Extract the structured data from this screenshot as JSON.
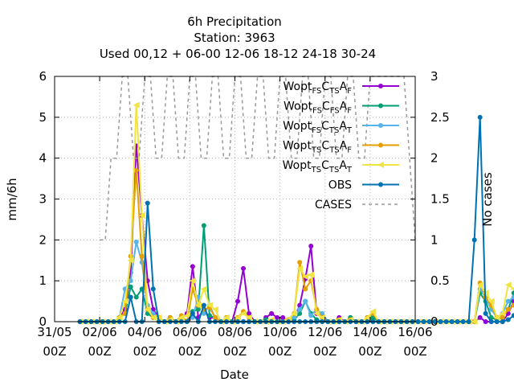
{
  "chart_data": {
    "type": "line",
    "title_lines": [
      "6h Precipitation",
      "Station:      3963",
      "Used  00,12  + 06-00 12-06 18-12 24-18 30-24"
    ],
    "xlabel": "Date",
    "ylabel": "mm/6h",
    "y2label": "No cases",
    "ylim": [
      0,
      6
    ],
    "y2lim": [
      0,
      3
    ],
    "xlim": [
      "31/05 00Z",
      "16/06 00Z"
    ],
    "grid": true,
    "legend_position": "top-right",
    "x_ticks": [
      {
        "day": 0,
        "line1": "31/05",
        "line2": "00Z"
      },
      {
        "day": 2,
        "line1": "02/06",
        "line2": "00Z"
      },
      {
        "day": 4,
        "line1": "04/06",
        "line2": "00Z"
      },
      {
        "day": 6,
        "line1": "06/06",
        "line2": "00Z"
      },
      {
        "day": 8,
        "line1": "08/06",
        "line2": "00Z"
      },
      {
        "day": 10,
        "line1": "10/06",
        "line2": "00Z"
      },
      {
        "day": 12,
        "line1": "12/06",
        "line2": "00Z"
      },
      {
        "day": 14,
        "line1": "14/06",
        "line2": "00Z"
      },
      {
        "day": 16,
        "line1": "16/06",
        "line2": "00Z"
      }
    ],
    "y_ticks": [
      "0",
      "1",
      "2",
      "3",
      "4",
      "5",
      "6"
    ],
    "y2_ticks": [
      "0",
      "0.5",
      "1",
      "1.5",
      "2",
      "2.5",
      "3"
    ],
    "x_step_days": 0.25,
    "x_start_day": 1.125,
    "series": [
      {
        "name": "Wopt FS C TS A F",
        "legend_parts": [
          [
            "Wopt",
            ""
          ],
          [
            "FS",
            "sub"
          ],
          [
            "C",
            ""
          ],
          [
            "TS",
            "sub"
          ],
          [
            "A",
            ""
          ],
          [
            "F",
            "sub"
          ]
        ],
        "color": "#9400d3",
        "marker": "circle",
        "dashed": false,
        "values": [
          0,
          0,
          0,
          0,
          0,
          0,
          0,
          0.1,
          0.3,
          1.2,
          4.3,
          2.6,
          1.0,
          0.3,
          0.1,
          0,
          0.1,
          0,
          0.1,
          0.2,
          1.35,
          0.1,
          0.3,
          0.1,
          0.1,
          0,
          0,
          0,
          0.5,
          1.3,
          0.2,
          0,
          0,
          0.1,
          0.2,
          0.1,
          0.1,
          0,
          0.1,
          0.4,
          1.05,
          1.85,
          0.2,
          0.1,
          0,
          0,
          0.1,
          0,
          0.1,
          0,
          0,
          0.1,
          0.2,
          0,
          0,
          0,
          0,
          0,
          0,
          0,
          0,
          0,
          0,
          0,
          0,
          0,
          0,
          0,
          0,
          0,
          0,
          0.1,
          0,
          0,
          0,
          0,
          0.2,
          0.5,
          0.55,
          0.5,
          0.45,
          0.6
        ]
      },
      {
        "name": "Wopt FS C FS A F",
        "legend_parts": [
          [
            "Wopt",
            ""
          ],
          [
            "FS",
            "sub"
          ],
          [
            "C",
            ""
          ],
          [
            "FS",
            "sub"
          ],
          [
            "A",
            ""
          ],
          [
            "F",
            "sub"
          ]
        ],
        "color": "#009e73",
        "marker": "circle",
        "dashed": false,
        "values": [
          0,
          0,
          0,
          0,
          0,
          0,
          0,
          0.1,
          0.2,
          0.85,
          0.6,
          0.8,
          0.2,
          0.1,
          0.1,
          0,
          0.1,
          0,
          0.1,
          0,
          0.25,
          0.3,
          2.35,
          0.15,
          0.1,
          0,
          0.1,
          0,
          0,
          0,
          0,
          0,
          0,
          0.05,
          0,
          0,
          0,
          0,
          0.05,
          0.2,
          0.5,
          0.2,
          0.05,
          0,
          0,
          0,
          0,
          0,
          0.1,
          0,
          0,
          0,
          0.1,
          0,
          0,
          0,
          0,
          0,
          0,
          0,
          0,
          0,
          0,
          0,
          0,
          0,
          0,
          0,
          0,
          0,
          0,
          0.7,
          0.5,
          0.1,
          0.05,
          0.1,
          0.3,
          0.7,
          1.55,
          0.7,
          0.75,
          1.1
        ]
      },
      {
        "name": "Wopt FS C TS A T",
        "legend_parts": [
          [
            "Wopt",
            ""
          ],
          [
            "FS",
            "sub"
          ],
          [
            "C",
            ""
          ],
          [
            "TS",
            "sub"
          ],
          [
            "A",
            ""
          ],
          [
            "T",
            "sub"
          ]
        ],
        "color": "#56b4e9",
        "marker": "circle",
        "dashed": false,
        "values": [
          0,
          0,
          0,
          0,
          0,
          0,
          0,
          0.1,
          0.8,
          1.0,
          1.95,
          1.45,
          0.4,
          0.2,
          0.1,
          0,
          0.05,
          0,
          0.1,
          0,
          0.1,
          0.6,
          0.2,
          0.4,
          0.1,
          0,
          0,
          0,
          0,
          0,
          0,
          0,
          0,
          0,
          0,
          0,
          0,
          0,
          0.1,
          0.3,
          0.5,
          0.15,
          0.3,
          0.2,
          0,
          0,
          0,
          0,
          0,
          0,
          0,
          0,
          0,
          0,
          0,
          0,
          0,
          0,
          0,
          0,
          0,
          0,
          0,
          0,
          0,
          0,
          0,
          0,
          0,
          0,
          0,
          0.8,
          0.6,
          0.3,
          0.1,
          0.2,
          0.5,
          0.6,
          0.5,
          0.4,
          0.55,
          0.25
        ]
      },
      {
        "name": "Wopt TS C TS A F",
        "legend_parts": [
          [
            "Wopt",
            ""
          ],
          [
            "TS",
            "sub"
          ],
          [
            "C",
            ""
          ],
          [
            "TS",
            "sub"
          ],
          [
            "A",
            ""
          ],
          [
            "F",
            "sub"
          ]
        ],
        "color": "#e69f00",
        "marker": "circle",
        "dashed": false,
        "values": [
          0,
          0,
          0,
          0,
          0,
          0,
          0,
          0.1,
          0.2,
          1.6,
          3.7,
          1.6,
          0.3,
          0.1,
          0.1,
          0,
          0.1,
          0,
          0.15,
          0,
          0.8,
          0.4,
          0.3,
          0.35,
          0.1,
          0,
          0.1,
          0,
          0.1,
          0.25,
          0.1,
          0,
          0,
          0,
          0,
          0,
          0,
          0.05,
          0.2,
          1.45,
          0.8,
          1.0,
          0.3,
          0.1,
          0,
          0,
          0.05,
          0,
          0.05,
          0,
          0,
          0.1,
          0.2,
          0,
          0,
          0,
          0,
          0,
          0,
          0,
          0,
          0,
          0,
          0,
          0,
          0,
          0,
          0,
          0,
          0,
          0,
          0.95,
          0.6,
          0.4,
          0.1,
          0.1,
          0.3,
          0.4,
          0.55,
          0.4,
          0.35,
          0.95
        ]
      },
      {
        "name": "Wopt TS C TS A T",
        "legend_parts": [
          [
            "Wopt",
            ""
          ],
          [
            "TS",
            "sub"
          ],
          [
            "C",
            ""
          ],
          [
            "TS",
            "sub"
          ],
          [
            "A",
            ""
          ],
          [
            "T",
            "sub"
          ]
        ],
        "color": "#f0e442",
        "marker": "triangle",
        "dashed": false,
        "values": [
          0,
          0,
          0,
          0,
          0,
          0,
          0,
          0.1,
          0.5,
          1.5,
          5.3,
          2.6,
          0.3,
          0.1,
          0.1,
          0,
          0.05,
          0,
          0.1,
          0.15,
          1.0,
          0.4,
          0.8,
          0.4,
          0.3,
          0,
          0.1,
          0,
          0.1,
          0.2,
          0.1,
          0,
          0,
          0,
          0.05,
          0,
          0,
          0.05,
          0.2,
          1.3,
          1.1,
          1.15,
          0.2,
          0.1,
          0,
          0,
          0.05,
          0,
          0.05,
          0,
          0,
          0.1,
          0.25,
          0,
          0,
          0,
          0,
          0,
          0,
          0,
          0,
          0,
          0,
          0,
          0,
          0,
          0,
          0,
          0,
          0,
          0,
          0.9,
          0.7,
          0.5,
          0.1,
          0.2,
          0.9,
          0.8,
          0.85,
          0.7,
          0.65,
          0.9
        ]
      },
      {
        "name": "OBS",
        "legend_parts": [
          [
            "OBS",
            ""
          ]
        ],
        "color": "#0072b2",
        "marker": "circle",
        "dashed": false,
        "values": [
          0,
          0,
          0,
          0,
          0,
          0,
          0,
          0,
          0,
          0.6,
          0,
          0,
          2.9,
          0.8,
          0,
          0,
          0,
          0,
          0,
          0,
          0.2,
          0,
          0.4,
          0,
          0,
          0,
          0,
          0,
          0,
          0,
          0,
          0,
          0,
          0,
          0,
          0,
          0,
          0,
          0,
          0,
          0,
          0,
          0,
          0,
          0,
          0,
          0,
          0,
          0,
          0,
          0,
          0,
          0,
          0,
          0,
          0,
          0,
          0,
          0,
          0,
          0,
          0,
          0,
          0,
          0,
          0,
          0,
          0,
          0,
          0,
          2.0,
          5.0,
          0.2,
          0,
          0,
          0,
          0.05,
          0.15,
          0,
          0,
          0,
          0.1
        ]
      },
      {
        "name": "CASES",
        "legend_parts": [
          [
            "CASES",
            ""
          ]
        ],
        "color": "#999999",
        "marker": "none",
        "dashed": true,
        "axis": "y2",
        "x": [
          2.0,
          2.25,
          2.5,
          2.75,
          3.0,
          3.25,
          3.5,
          3.75,
          4.0,
          4.25,
          4.5,
          4.75,
          5.0,
          5.25,
          5.5,
          5.75,
          6.0,
          6.25,
          6.5,
          6.75,
          7.0,
          7.25,
          7.5,
          7.75,
          8.0,
          8.25,
          8.5,
          8.75,
          9.0,
          9.25,
          9.5,
          9.75,
          10.0,
          10.25,
          10.5,
          10.75,
          11.0,
          11.25,
          11.5,
          11.75,
          12.0,
          12.25,
          12.5,
          12.75,
          13.0,
          13.25,
          13.5,
          13.75,
          14.0,
          14.25,
          14.5,
          14.75,
          15.0,
          15.25,
          15.5,
          15.75,
          16.0
        ],
        "values": [
          1,
          1,
          2,
          2,
          3,
          3,
          2,
          2,
          3,
          3,
          2,
          2,
          3,
          3,
          2,
          2,
          3,
          3,
          2,
          2,
          3,
          3,
          2,
          2,
          3,
          3,
          2,
          2,
          3,
          3,
          2,
          2,
          3,
          3,
          2,
          2,
          3,
          3,
          2,
          2,
          3,
          3,
          2,
          2,
          3,
          3,
          2,
          2,
          3,
          3,
          3,
          3,
          3,
          3,
          3,
          2,
          1
        ]
      }
    ],
    "legend": [
      {
        "series": 0
      },
      {
        "series": 1
      },
      {
        "series": 2
      },
      {
        "series": 3
      },
      {
        "series": 4
      },
      {
        "series": 5
      },
      {
        "series": 6
      }
    ]
  }
}
